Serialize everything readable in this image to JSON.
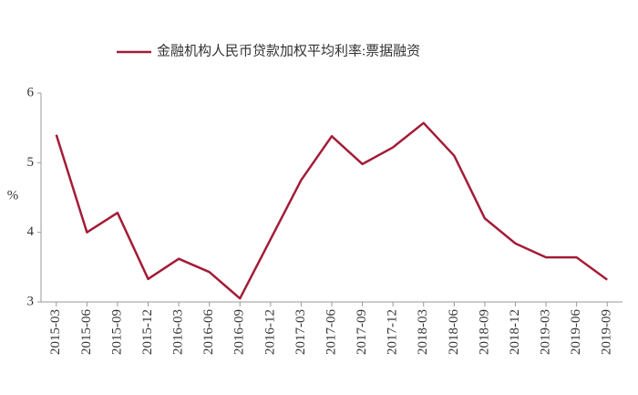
{
  "chart_data": {
    "type": "line",
    "categories": [
      "2015-03",
      "2015-06",
      "2015-09",
      "2015-12",
      "2016-03",
      "2016-06",
      "2016-09",
      "2016-12",
      "2017-03",
      "2017-06",
      "2017-09",
      "2017-12",
      "2018-03",
      "2018-06",
      "2018-09",
      "2018-12",
      "2019-03",
      "2019-06",
      "2019-09"
    ],
    "series": [
      {
        "name": "金融机构人民币贷款加权平均利率:票据融资",
        "color": "#a31c37",
        "values": [
          5.4,
          4.0,
          4.28,
          3.33,
          3.62,
          3.43,
          3.05,
          3.9,
          4.75,
          5.38,
          4.98,
          5.22,
          5.57,
          5.1,
          4.2,
          3.84,
          3.64,
          3.64,
          3.32
        ]
      }
    ],
    "y_label": "%",
    "ylim": [
      3,
      6
    ],
    "yticks": [
      3,
      4,
      5,
      6
    ],
    "grid": false,
    "legend": "top"
  }
}
